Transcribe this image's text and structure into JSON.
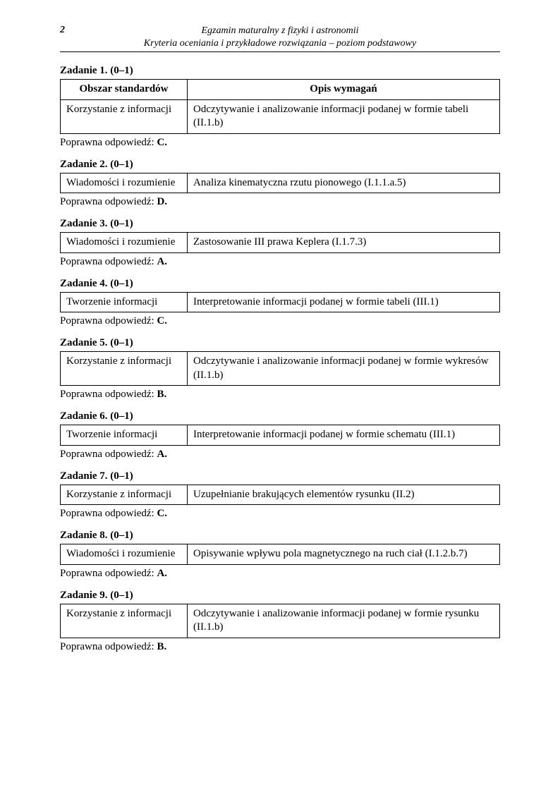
{
  "page_number": "2",
  "header_line1": "Egzamin maturalny z fizyki i astronomii",
  "header_line2": "Kryteria oceniania i przykładowe rozwiązania – poziom podstawowy",
  "columns_header": {
    "col1": "Obszar standardów",
    "col2": "Opis wymagań"
  },
  "answer_prefix": "Poprawna odpowiedź: ",
  "tasks": [
    {
      "title": "Zadanie 1. (0–1)",
      "show_header": true,
      "area": "Korzystanie z informacji",
      "desc": "Odczytywanie i analizowanie informacji podanej w formie tabeli (II.1.b)",
      "answer": "C."
    },
    {
      "title": "Zadanie 2. (0–1)",
      "show_header": false,
      "area": "Wiadomości i rozumienie",
      "desc": "Analiza kinematyczna rzutu pionowego (I.1.1.a.5)",
      "answer": "D."
    },
    {
      "title": "Zadanie 3. (0–1)",
      "show_header": false,
      "area": "Wiadomości i rozumienie",
      "desc": "Zastosowanie III prawa Keplera (I.1.7.3)",
      "answer": "A."
    },
    {
      "title": "Zadanie 4. (0–1)",
      "show_header": false,
      "area": "Tworzenie informacji",
      "desc": "Interpretowanie informacji podanej w formie tabeli (III.1)",
      "answer": "C."
    },
    {
      "title": "Zadanie 5. (0–1)",
      "show_header": false,
      "area": "Korzystanie z informacji",
      "desc": "Odczytywanie i analizowanie informacji podanej w formie wykresów (II.1.b)",
      "answer": "B."
    },
    {
      "title": "Zadanie 6. (0–1)",
      "show_header": false,
      "area": "Tworzenie informacji",
      "desc": "Interpretowanie informacji podanej w formie schematu (III.1)",
      "answer": "A."
    },
    {
      "title": "Zadanie 7. (0–1)",
      "show_header": false,
      "area": "Korzystanie z informacji",
      "desc": "Uzupełnianie brakujących elementów rysunku (II.2)",
      "answer": "C."
    },
    {
      "title": "Zadanie 8. (0–1)",
      "show_header": false,
      "area": "Wiadomości i rozumienie",
      "desc": "Opisywanie wpływu pola magnetycznego na ruch ciał (I.1.2.b.7)",
      "answer": "A."
    },
    {
      "title": "Zadanie 9. (0–1)",
      "show_header": false,
      "area": "Korzystanie z informacji",
      "desc": "Odczytywanie i analizowanie informacji podanej w formie rysunku (II.1.b)",
      "answer": "B."
    }
  ]
}
